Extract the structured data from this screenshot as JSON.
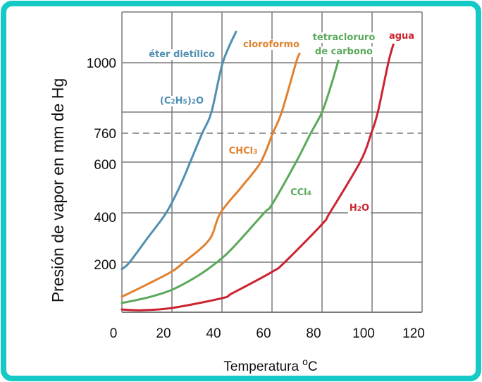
{
  "chart_data": {
    "type": "line",
    "title": "",
    "xlabel": "Temperatura",
    "xlabel_unit_sup": "o",
    "xlabel_unit": "C",
    "ylabel": "Presión de vapor en mm de Hg",
    "xlim": [
      0,
      120
    ],
    "x_ticks": [
      0,
      20,
      40,
      60,
      80,
      100,
      120
    ],
    "y_scale_anchors": [
      0,
      200,
      400,
      600,
      760,
      800,
      1000,
      1200
    ],
    "y_ticks": [
      200,
      400,
      600,
      760,
      1000
    ],
    "y_gridlines": [
      200,
      400,
      600,
      800,
      1000
    ],
    "reference_line": {
      "value": 760,
      "style": "dashed"
    },
    "grid": true,
    "colors": {
      "grid": "#7a7a7a",
      "frame": "#14c9c6"
    },
    "series": [
      {
        "name": "éter dietílico",
        "formula_parts": [
          [
            "(C",
            ""
          ],
          [
            "2",
            "sub"
          ],
          [
            "H",
            ""
          ],
          [
            "5",
            "sub"
          ],
          [
            ")",
            ""
          ],
          [
            "2",
            "sub"
          ],
          [
            "O",
            ""
          ]
        ],
        "color": "#4f8fb1",
        "x": [
          0,
          3.1,
          10.4,
          17.7,
          23.1,
          27.3,
          32.1,
          35.8,
          40.3,
          45.6
        ],
        "y": [
          172,
          200,
          300,
          400,
          503,
          600,
          760,
          800,
          1000,
          1122
        ]
      },
      {
        "name": "cloroformo",
        "formula_parts": [
          [
            "CHCl",
            ""
          ],
          [
            "3",
            "sub"
          ]
        ],
        "color": "#e0812f",
        "x": [
          0,
          10.4,
          20,
          24.8,
          34.9,
          39.4,
          47.9,
          55.5,
          60.3,
          63.9,
          69.6,
          71
        ],
        "y": [
          62,
          113,
          163,
          200,
          291,
          400,
          503,
          600,
          760,
          800,
          1000,
          1036
        ]
      },
      {
        "name_lines": [
          "tetracloruro",
          "de carbono"
        ],
        "formula_parts": [
          [
            "CCl",
            ""
          ],
          [
            "4",
            "sub"
          ]
        ],
        "color": "#5aa95a",
        "x": [
          0,
          10.4,
          20,
          30.1,
          38,
          44.2,
          56.9,
          60,
          69.6,
          75.5,
          80,
          83.7,
          86.5
        ],
        "y": [
          37,
          59,
          90,
          144,
          200,
          257,
          400,
          433,
          600,
          760,
          800,
          911,
          1008
        ]
      },
      {
        "name": "agua",
        "formula_parts": [
          [
            "H",
            ""
          ],
          [
            "2",
            "sub"
          ],
          [
            "O",
            ""
          ]
        ],
        "color": "#cc2331",
        "x": [
          0,
          7.6,
          20,
          40,
          44.2,
          60,
          65.1,
          80,
          83.1,
          95.2,
          99.7,
          102.3,
          106.5,
          108.5
        ],
        "y": [
          11,
          8,
          17,
          56,
          76,
          161,
          200,
          354,
          400,
          600,
          760,
          800,
          1000,
          1072
        ]
      }
    ]
  }
}
